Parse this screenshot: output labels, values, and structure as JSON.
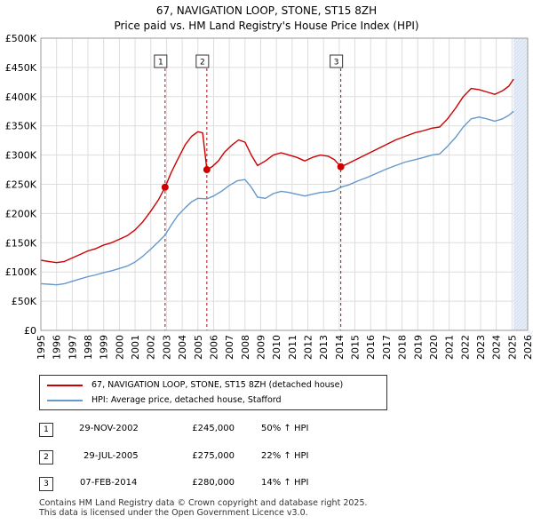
{
  "title_line1": "67, NAVIGATION LOOP, STONE, ST15 8ZH",
  "title_line2": "Price paid vs. HM Land Registry's House Price Index (HPI)",
  "colors": {
    "price": "#cc0000",
    "hpi": "#6699cc",
    "grid": "#dddddd",
    "shade": "#e8eef8",
    "marker_line": "#cc0000"
  },
  "chart_data": {
    "type": "line",
    "title": "67, NAVIGATION LOOP, STONE, ST15 8ZH — Price paid vs. HM Land Registry's House Price Index (HPI)",
    "xlabel": "",
    "ylabel": "",
    "xlim": [
      1995,
      2026
    ],
    "ylim": [
      0,
      500000
    ],
    "y_ticks": [
      0,
      50000,
      100000,
      150000,
      200000,
      250000,
      300000,
      350000,
      400000,
      450000,
      500000
    ],
    "y_tick_labels": [
      "£0",
      "£50K",
      "£100K",
      "£150K",
      "£200K",
      "£250K",
      "£300K",
      "£350K",
      "£400K",
      "£450K",
      "£500K"
    ],
    "x_ticks": [
      1995,
      1996,
      1997,
      1998,
      1999,
      2000,
      2001,
      2002,
      2003,
      2004,
      2005,
      2006,
      2007,
      2008,
      2009,
      2010,
      2011,
      2012,
      2013,
      2014,
      2015,
      2016,
      2017,
      2018,
      2019,
      2020,
      2021,
      2022,
      2023,
      2024,
      2025,
      2026
    ],
    "x_tick_labels": [
      "1995",
      "1996",
      "1997",
      "1998",
      "1999",
      "2000",
      "2001",
      "2002",
      "2003",
      "2004",
      "2005",
      "2006",
      "2007",
      "2008",
      "2009",
      "2010",
      "2011",
      "2012",
      "2013",
      "2014",
      "2015",
      "2016",
      "2017",
      "2018",
      "2019",
      "2020",
      "2021",
      "2022",
      "2023",
      "2024",
      "2025",
      "2026"
    ],
    "grid": true,
    "series": [
      {
        "name": "67, NAVIGATION LOOP, STONE, ST15 8ZH (detached house)",
        "color": "#cc0000",
        "points": [
          [
            1995.0,
            120000
          ],
          [
            1995.5,
            118000
          ],
          [
            1996.0,
            116000
          ],
          [
            1996.5,
            118000
          ],
          [
            1997.0,
            124000
          ],
          [
            1997.5,
            130000
          ],
          [
            1998.0,
            136000
          ],
          [
            1998.5,
            140000
          ],
          [
            1999.0,
            146000
          ],
          [
            1999.5,
            150000
          ],
          [
            2000.0,
            156000
          ],
          [
            2000.5,
            162000
          ],
          [
            2001.0,
            172000
          ],
          [
            2001.5,
            186000
          ],
          [
            2002.0,
            204000
          ],
          [
            2002.5,
            224000
          ],
          [
            2002.91,
            245000
          ],
          [
            2003.3,
            270000
          ],
          [
            2003.7,
            292000
          ],
          [
            2004.2,
            318000
          ],
          [
            2004.6,
            332000
          ],
          [
            2005.0,
            340000
          ],
          [
            2005.3,
            338000
          ],
          [
            2005.57,
            275000
          ],
          [
            2005.9,
            280000
          ],
          [
            2006.3,
            290000
          ],
          [
            2006.7,
            305000
          ],
          [
            2007.2,
            318000
          ],
          [
            2007.6,
            326000
          ],
          [
            2008.0,
            322000
          ],
          [
            2008.4,
            300000
          ],
          [
            2008.8,
            282000
          ],
          [
            2009.3,
            290000
          ],
          [
            2009.8,
            300000
          ],
          [
            2010.3,
            304000
          ],
          [
            2010.8,
            300000
          ],
          [
            2011.3,
            296000
          ],
          [
            2011.8,
            290000
          ],
          [
            2012.3,
            296000
          ],
          [
            2012.8,
            300000
          ],
          [
            2013.3,
            298000
          ],
          [
            2013.7,
            292000
          ],
          [
            2014.1,
            280000
          ],
          [
            2014.6,
            286000
          ],
          [
            2015.2,
            294000
          ],
          [
            2015.8,
            302000
          ],
          [
            2016.4,
            310000
          ],
          [
            2017.0,
            318000
          ],
          [
            2017.6,
            326000
          ],
          [
            2018.2,
            332000
          ],
          [
            2018.8,
            338000
          ],
          [
            2019.4,
            342000
          ],
          [
            2019.9,
            346000
          ],
          [
            2020.4,
            348000
          ],
          [
            2020.9,
            362000
          ],
          [
            2021.4,
            380000
          ],
          [
            2021.9,
            400000
          ],
          [
            2022.4,
            414000
          ],
          [
            2022.9,
            412000
          ],
          [
            2023.4,
            408000
          ],
          [
            2023.9,
            404000
          ],
          [
            2024.4,
            410000
          ],
          [
            2024.8,
            418000
          ],
          [
            2025.1,
            430000
          ]
        ]
      },
      {
        "name": "HPI: Average price, detached house, Stafford",
        "color": "#6699cc",
        "points": [
          [
            1995.0,
            80000
          ],
          [
            1995.5,
            79000
          ],
          [
            1996.0,
            78000
          ],
          [
            1996.5,
            80000
          ],
          [
            1997.0,
            84000
          ],
          [
            1997.5,
            88000
          ],
          [
            1998.0,
            92000
          ],
          [
            1998.5,
            95000
          ],
          [
            1999.0,
            99000
          ],
          [
            1999.5,
            102000
          ],
          [
            2000.0,
            106000
          ],
          [
            2000.5,
            110000
          ],
          [
            2001.0,
            117000
          ],
          [
            2001.5,
            127000
          ],
          [
            2002.0,
            139000
          ],
          [
            2002.5,
            152000
          ],
          [
            2002.91,
            163000
          ],
          [
            2003.3,
            180000
          ],
          [
            2003.7,
            196000
          ],
          [
            2004.2,
            210000
          ],
          [
            2004.6,
            220000
          ],
          [
            2005.0,
            226000
          ],
          [
            2005.57,
            225000
          ],
          [
            2006.0,
            230000
          ],
          [
            2006.5,
            238000
          ],
          [
            2007.0,
            248000
          ],
          [
            2007.5,
            256000
          ],
          [
            2008.0,
            258000
          ],
          [
            2008.4,
            245000
          ],
          [
            2008.8,
            228000
          ],
          [
            2009.3,
            226000
          ],
          [
            2009.8,
            234000
          ],
          [
            2010.3,
            238000
          ],
          [
            2010.8,
            236000
          ],
          [
            2011.3,
            233000
          ],
          [
            2011.8,
            230000
          ],
          [
            2012.3,
            233000
          ],
          [
            2012.8,
            236000
          ],
          [
            2013.3,
            237000
          ],
          [
            2013.7,
            239000
          ],
          [
            2014.1,
            245000
          ],
          [
            2014.6,
            249000
          ],
          [
            2015.2,
            256000
          ],
          [
            2015.8,
            262000
          ],
          [
            2016.4,
            269000
          ],
          [
            2017.0,
            276000
          ],
          [
            2017.6,
            282000
          ],
          [
            2018.2,
            288000
          ],
          [
            2018.8,
            292000
          ],
          [
            2019.4,
            296000
          ],
          [
            2019.9,
            300000
          ],
          [
            2020.4,
            302000
          ],
          [
            2020.9,
            315000
          ],
          [
            2021.4,
            330000
          ],
          [
            2021.9,
            348000
          ],
          [
            2022.4,
            362000
          ],
          [
            2022.9,
            365000
          ],
          [
            2023.4,
            362000
          ],
          [
            2023.9,
            358000
          ],
          [
            2024.4,
            362000
          ],
          [
            2024.8,
            368000
          ],
          [
            2025.1,
            375000
          ]
        ]
      }
    ],
    "sales": [
      {
        "label": "1",
        "x": 2002.91,
        "price": 245000
      },
      {
        "label": "2",
        "x": 2005.57,
        "price": 275000
      },
      {
        "label": "3",
        "x": 2014.1,
        "price": 280000
      }
    ],
    "shaded_from": 2025.1
  },
  "legend": {
    "price_label": "67, NAVIGATION LOOP, STONE, ST15 8ZH (detached house)",
    "hpi_label": "HPI: Average price, detached house, Stafford"
  },
  "sales_table": [
    {
      "num": "1",
      "date": "29-NOV-2002",
      "price": "£245,000",
      "hpi": "50% ↑ HPI"
    },
    {
      "num": "2",
      "date": "29-JUL-2005",
      "price": "£275,000",
      "hpi": "22% ↑ HPI"
    },
    {
      "num": "3",
      "date": "07-FEB-2014",
      "price": "£280,000",
      "hpi": "14% ↑ HPI"
    }
  ],
  "footer": {
    "line1": "Contains HM Land Registry data © Crown copyright and database right 2025.",
    "line2": "This data is licensed under the Open Government Licence v3.0."
  }
}
